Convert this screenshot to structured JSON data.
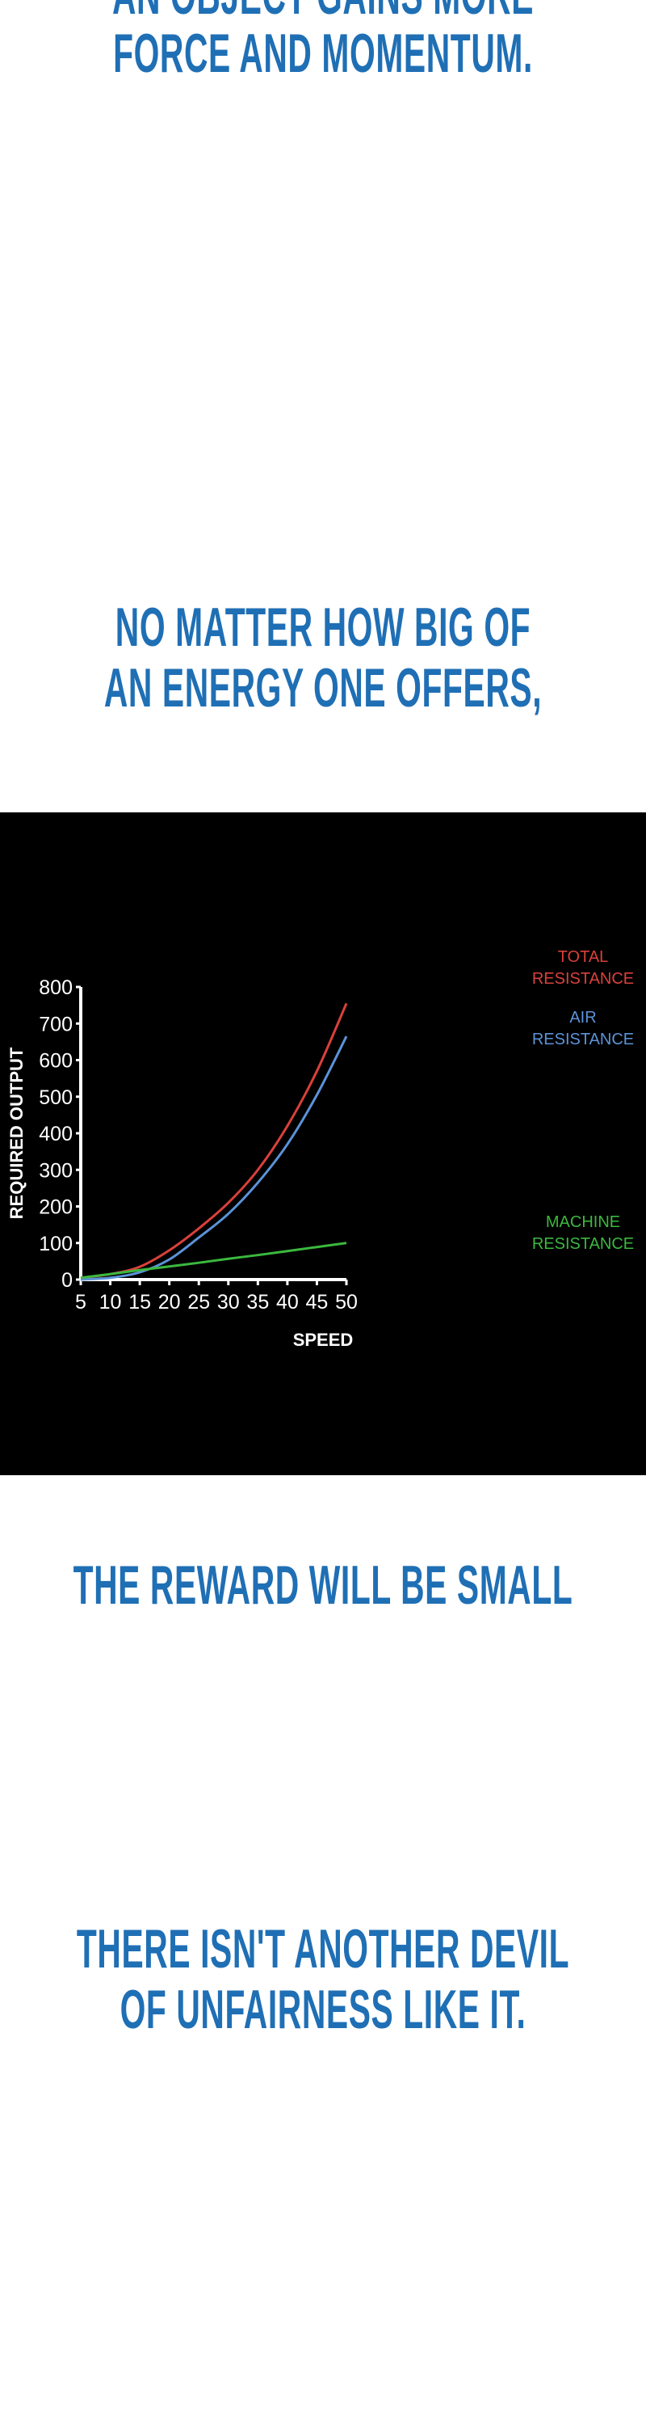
{
  "captions": {
    "top_partial": "AN OBJECT GAINS MORE",
    "top": "FORCE AND MOMENTUM.",
    "second": [
      "NO MATTER HOW BIG OF",
      "AN ENERGY ONE OFFERS,"
    ],
    "third": "THE REWARD WILL BE SMALL",
    "fourth": [
      "THERE ISN'T ANOTHER DEVIL",
      "OF UNFAIRNESS LIKE IT."
    ]
  },
  "colors": {
    "caption": "#1f6fb5",
    "background": "#ffffff",
    "chart_bg": "#000000"
  },
  "chart_data": {
    "type": "line",
    "title": "",
    "xlabel": "SPEED",
    "ylabel": "REQUIRED OUTPUT",
    "xlim": [
      5,
      50
    ],
    "ylim": [
      0,
      800
    ],
    "xticks": [
      5,
      10,
      15,
      20,
      25,
      30,
      35,
      40,
      45,
      50
    ],
    "yticks": [
      0,
      100,
      200,
      300,
      400,
      500,
      600,
      700,
      800
    ],
    "grid": false,
    "x": [
      5,
      10,
      15,
      20,
      25,
      30,
      35,
      40,
      45,
      50
    ],
    "series": [
      {
        "name": "TOTAL RESISTANCE",
        "label_lines": [
          "TOTAL",
          "RESISTANCE"
        ],
        "color": "#d9413a",
        "values": [
          5,
          15,
          35,
          80,
          140,
          210,
          300,
          420,
          570,
          755
        ]
      },
      {
        "name": "AIR RESISTANCE",
        "label_lines": [
          "AIR",
          "RESISTANCE"
        ],
        "color": "#5b93d8",
        "values": [
          0,
          5,
          20,
          55,
          115,
          180,
          265,
          370,
          505,
          665
        ]
      },
      {
        "name": "MACHINE RESISTANCE",
        "label_lines": [
          "MACHINE",
          "RESISTANCE"
        ],
        "color": "#3bb83e",
        "values": [
          5,
          15,
          26,
          36,
          46,
          57,
          67,
          78,
          89,
          100
        ]
      }
    ]
  }
}
